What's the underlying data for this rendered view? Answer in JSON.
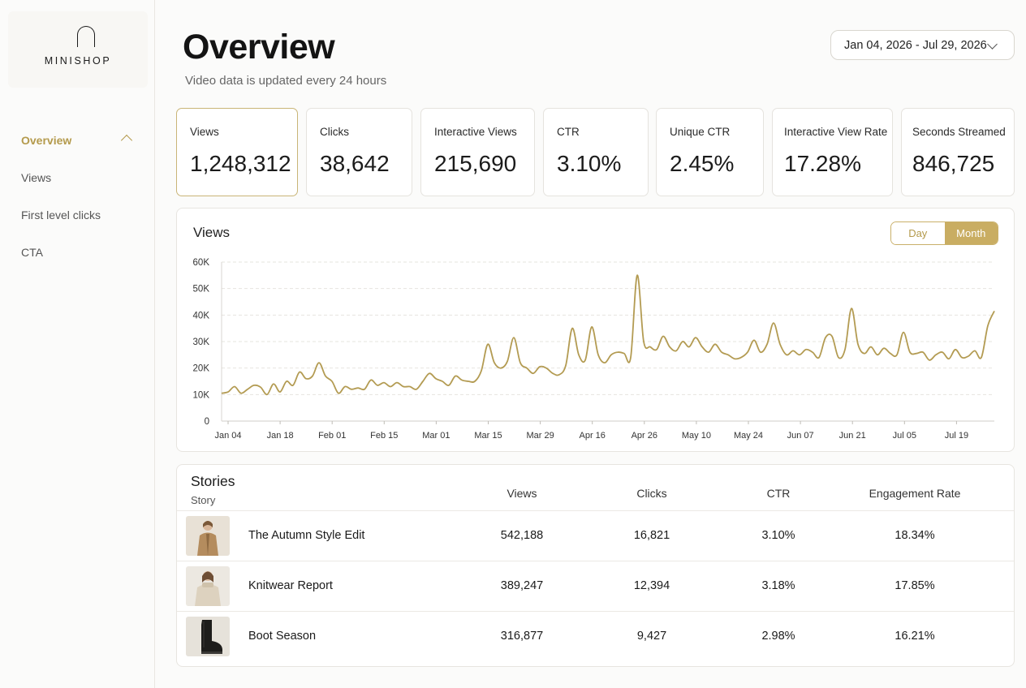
{
  "brand": {
    "name": "MINISHOP"
  },
  "sidebar": {
    "items": [
      {
        "label": "Overview",
        "active": true
      },
      {
        "label": "Views"
      },
      {
        "label": "First level clicks"
      },
      {
        "label": "CTA"
      }
    ]
  },
  "header": {
    "title": "Overview",
    "subtitle": "Video data is updated every 24 hours",
    "date_range": "Jan 04, 2026 - Jul 29, 2026"
  },
  "kpis": [
    {
      "label": "Views",
      "value": "1,248,312",
      "selected": true
    },
    {
      "label": "Clicks",
      "value": "38,642"
    },
    {
      "label": "Interactive Views",
      "value": "215,690"
    },
    {
      "label": "CTR",
      "value": "3.10%"
    },
    {
      "label": "Unique CTR",
      "value": "2.45%"
    },
    {
      "label": "Interactive View Rate",
      "value": "17.28%"
    },
    {
      "label": "Seconds Streamed",
      "value": "846,725"
    }
  ],
  "chart": {
    "toggle": {
      "day_label": "Day",
      "month_label": "Month",
      "selected": "Month"
    },
    "accent_color": "#b39b52"
  },
  "chart_data": {
    "type": "line",
    "title": "Views",
    "xlabel": "",
    "ylabel": "",
    "ylim": [
      0,
      60000
    ],
    "y_ticks": [
      "0",
      "10K",
      "20K",
      "30K",
      "40K",
      "50K",
      "60K"
    ],
    "x_ticks": [
      "Jan 04",
      "Jan 18",
      "Feb 01",
      "Feb 15",
      "Mar 01",
      "Mar 15",
      "Mar 29",
      "Apr 16",
      "Apr 26",
      "May 10",
      "May 24",
      "Jun 07",
      "Jun 21",
      "Jul 05",
      "Jul 19"
    ],
    "grid": true,
    "series": [
      {
        "values": [
          10500,
          11000,
          13000,
          10500,
          12000,
          13500,
          12800,
          10000,
          14000,
          11000,
          15000,
          13500,
          18500,
          16000,
          17000,
          22000,
          17000,
          15000,
          10500,
          13000,
          12000,
          12500,
          12000,
          15500,
          13500,
          14500,
          13000,
          14500,
          13000,
          13000,
          12000,
          15000,
          18000,
          16000,
          15000,
          13500,
          17000,
          15500,
          15000,
          15000,
          19000,
          29000,
          22000,
          20000,
          22500,
          31500,
          22000,
          20000,
          18000,
          20500,
          20000,
          18000,
          17500,
          21000,
          35000,
          25000,
          23000,
          35500,
          25000,
          22000,
          25000,
          26000,
          25500,
          24000,
          55000,
          30000,
          28000,
          27000,
          32000,
          28000,
          26500,
          30000,
          28000,
          31500,
          28000,
          26000,
          29000,
          26000,
          25000,
          23500,
          24000,
          26000,
          30500,
          26000,
          29000,
          37000,
          29000,
          25000,
          26500,
          25000,
          27000,
          26000,
          24000,
          31500,
          32000,
          24000,
          27000,
          42500,
          29000,
          25500,
          28000,
          25000,
          27500,
          25500,
          25000,
          33500,
          26000,
          25500,
          26000,
          23000,
          25000,
          26000,
          23500,
          27000,
          24000,
          24500,
          26500,
          24000,
          36000,
          41500
        ]
      }
    ]
  },
  "stories": {
    "title": "Stories",
    "columns": {
      "story": "Story",
      "views": "Views",
      "clicks": "Clicks",
      "ctr": "CTR",
      "engagement": "Engagement Rate"
    },
    "rows": [
      {
        "name": "The Autumn Style Edit",
        "views": "542,188",
        "clicks": "16,821",
        "ctr": "3.10%",
        "engagement": "18.34%",
        "thumb_icon": "coat-photo-icon"
      },
      {
        "name": "Knitwear Report",
        "views": "389,247",
        "clicks": "12,394",
        "ctr": "3.18%",
        "engagement": "17.85%",
        "thumb_icon": "knitwear-photo-icon"
      },
      {
        "name": "Boot Season",
        "views": "316,877",
        "clicks": "9,427",
        "ctr": "2.98%",
        "engagement": "16.21%",
        "thumb_icon": "boot-photo-icon"
      }
    ]
  }
}
